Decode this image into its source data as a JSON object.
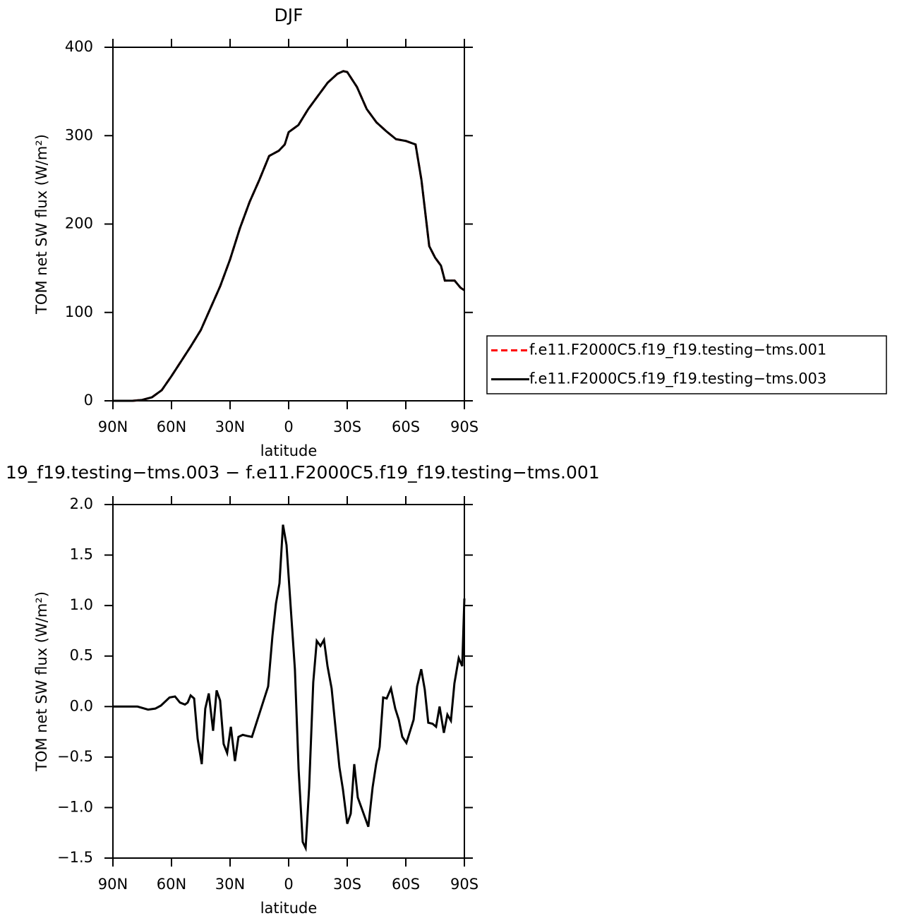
{
  "chart_data": [
    {
      "type": "line",
      "title": "DJF",
      "x_label": "latitude",
      "y_label": "TOM net SW flux (W/m²)",
      "xlim": [
        90,
        -90
      ],
      "ylim": [
        0,
        400
      ],
      "xticks": [
        {
          "value": 90,
          "label": "90N"
        },
        {
          "value": 60,
          "label": "60N"
        },
        {
          "value": 30,
          "label": "30N"
        },
        0,
        {
          "value": -30,
          "label": "30S"
        },
        {
          "value": -60,
          "label": "60S"
        },
        {
          "value": -90,
          "label": "90S"
        }
      ],
      "yticks": [
        0,
        100,
        200,
        300,
        400
      ],
      "legend": "right",
      "x": [
        90,
        85,
        80,
        75,
        70,
        65,
        60,
        55,
        50,
        45,
        40,
        35,
        30,
        25,
        20,
        15,
        10,
        5,
        2,
        0,
        -5,
        -10,
        -15,
        -20,
        -25,
        -28,
        -30,
        -35,
        -40,
        -45,
        -50,
        -55,
        -60,
        -65,
        -68,
        -72,
        -75,
        -78,
        -80,
        -85,
        -88,
        -90
      ],
      "series": [
        {
          "name": "f.e11.F2000C5.f19_f19.testing−tms.001",
          "color": "#ff0000",
          "dash": true,
          "values": [
            0,
            0,
            0,
            1,
            4,
            12,
            28,
            45,
            62,
            80,
            105,
            130,
            160,
            195,
            225,
            250,
            277,
            283,
            290,
            304,
            312,
            330,
            345,
            360,
            370,
            373,
            372,
            355,
            330,
            315,
            305,
            296,
            294,
            290,
            250,
            175,
            162,
            153,
            136,
            136,
            128,
            125
          ]
        },
        {
          "name": "f.e11.F2000C5.f19_f19.testing−tms.003",
          "color": "#000000",
          "dash": false,
          "values": [
            0,
            0,
            0,
            1,
            4,
            12,
            28,
            45,
            62,
            80,
            105,
            130,
            160,
            195,
            225,
            250,
            277,
            283,
            290,
            304,
            312,
            330,
            345,
            360,
            370,
            373,
            372,
            355,
            330,
            315,
            305,
            296,
            294,
            290,
            250,
            175,
            162,
            153,
            136,
            136,
            128,
            125
          ]
        }
      ]
    },
    {
      "type": "line",
      "title": "19_f19.testing−tms.003 − f.e11.F2000C5.f19_f19.testing−tms.001",
      "x_label": "latitude",
      "y_label": "TOM net SW flux (W/m²)",
      "xlim": [
        90,
        -90
      ],
      "ylim": [
        -1.5,
        2
      ],
      "xticks": [
        {
          "value": 90,
          "label": "90N"
        },
        {
          "value": 60,
          "label": "60N"
        },
        {
          "value": 30,
          "label": "30N"
        },
        0,
        {
          "value": -30,
          "label": "30S"
        },
        {
          "value": -60,
          "label": "60S"
        },
        {
          "value": -90,
          "label": "90S"
        }
      ],
      "yticks": [
        {
          "value": -1.5,
          "label": "−1.5"
        },
        {
          "value": -1,
          "label": "−1.0"
        },
        {
          "value": -0.5,
          "label": "−0.5"
        },
        {
          "value": 0,
          "label": "0.0"
        },
        0.5,
        {
          "value": 1,
          "label": "1.0"
        },
        1.5,
        {
          "value": 2,
          "label": "2.0"
        }
      ],
      "x": [
        90,
        82.8,
        77.4,
        72,
        68.3,
        65.4,
        61,
        58.2,
        55.7,
        53.1,
        51.7,
        50.2,
        48.4,
        46.6,
        44.5,
        42.7,
        40.9,
        38.7,
        36.9,
        35.1,
        33.3,
        31.5,
        29.6,
        27.5,
        25.7,
        23.5,
        21.4,
        18.8,
        10.5,
        8.3,
        6.5,
        4.7,
        2.9,
        1.1,
        -3.2,
        -5.1,
        -7.2,
        -8.7,
        -10.5,
        -12.6,
        -14.4,
        -16.3,
        -18.1,
        -19.9,
        -22,
        -26,
        -27.8,
        -30,
        -31.8,
        -33.6,
        -35.4,
        -40.8,
        -43,
        -44.8,
        -46.6,
        -48.4,
        -50.2,
        -52.4,
        -54.6,
        -56.4,
        -58.2,
        -60.3,
        -64,
        -65.8,
        -67.9,
        -69.7,
        -71.5,
        -73.7,
        -75.5,
        -77.3,
        -79.5,
        -81.3,
        -83.1,
        -84.9,
        -87.1,
        -88.9,
        -90
      ],
      "series": [
        {
          "color": "#000000",
          "values": [
            0,
            0,
            0,
            -0.03,
            -0.02,
            0.01,
            0.09,
            0.1,
            0.04,
            0.02,
            0.04,
            0.11,
            0.08,
            -0.32,
            -0.57,
            -0.02,
            0.13,
            -0.24,
            0.16,
            0.06,
            -0.37,
            -0.46,
            -0.2,
            -0.54,
            -0.3,
            -0.28,
            -0.29,
            -0.3,
            0.2,
            0.7,
            1.02,
            1.22,
            1.8,
            1.6,
            0.37,
            -0.62,
            -1.34,
            -1.4,
            -0.8,
            0.24,
            0.65,
            0.6,
            0.66,
            0.4,
            0.18,
            -0.6,
            -0.82,
            -1.16,
            -1.06,
            -0.57,
            -0.9,
            -1.19,
            -0.8,
            -0.57,
            -0.4,
            0.09,
            0.08,
            0.18,
            -0.02,
            -0.13,
            -0.3,
            -0.36,
            -0.13,
            0.2,
            0.37,
            0.17,
            -0.16,
            -0.17,
            -0.2,
            0,
            -0.26,
            -0.08,
            -0.14,
            0.23,
            0.48,
            0.4,
            1.07
          ]
        }
      ]
    }
  ]
}
